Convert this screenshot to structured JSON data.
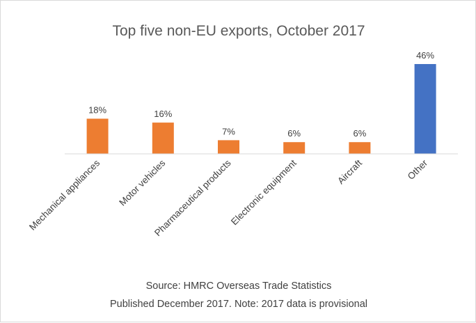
{
  "chart_data": {
    "type": "bar",
    "title": "Top five non-EU exports, October 2017",
    "categories": [
      "Mechanical appliances",
      "Motor vehicles",
      "Pharmaceutical products",
      "Electronic equipment",
      "Aircraft",
      "Other"
    ],
    "values": [
      18,
      16,
      7,
      6,
      6,
      46
    ],
    "data_labels": [
      "18%",
      "16%",
      "7%",
      "6%",
      "6%",
      "46%"
    ],
    "unit": "%",
    "bar_colors": [
      "#ed7d31",
      "#ed7d31",
      "#ed7d31",
      "#ed7d31",
      "#ed7d31",
      "#4472c4"
    ],
    "ylim": [
      0,
      46
    ],
    "grid": false,
    "legend": "none",
    "xlabel": "",
    "ylabel": ""
  },
  "footer": {
    "source": "Source: HMRC Overseas Trade Statistics",
    "note": "Published December 2017. Note: 2017 data is provisional"
  },
  "colors": {
    "highlight": "#4472c4",
    "standard": "#ed7d31",
    "text": "#404040",
    "axis": "#d9d9d9"
  }
}
